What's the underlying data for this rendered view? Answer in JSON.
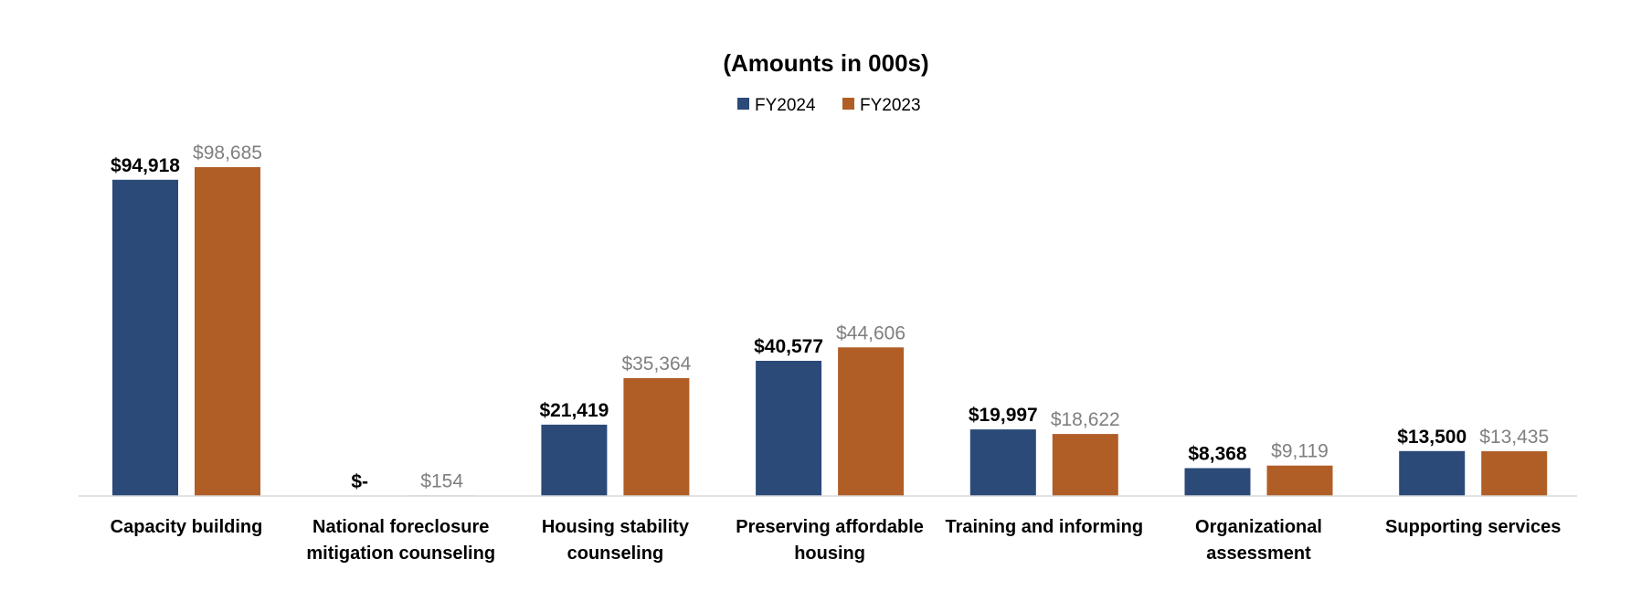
{
  "chart_data": {
    "type": "bar",
    "title": "(Amounts in 000s)",
    "xlabel": "",
    "ylabel": "",
    "ylim": [
      0,
      105000
    ],
    "grid": false,
    "legend_position": "top-center",
    "categories": [
      [
        "Capacity building"
      ],
      [
        "National foreclosure",
        "mitigation counseling"
      ],
      [
        "Housing stability",
        "counseling"
      ],
      [
        "Preserving affordable",
        "housing"
      ],
      [
        "Training and informing"
      ],
      [
        "Organizational",
        "assessment"
      ],
      [
        "Supporting services"
      ]
    ],
    "series": [
      {
        "name": "FY2024",
        "color": "#2b4a78",
        "label_color": "#000000",
        "label_bold": true,
        "values": [
          94918,
          0,
          21419,
          40577,
          19997,
          8368,
          13500
        ],
        "labels": [
          "$94,918",
          "$-",
          "$21,419",
          "$40,577",
          "$19,997",
          "$8,368",
          "$13,500"
        ]
      },
      {
        "name": "FY2023",
        "color": "#b05e26",
        "label_color": "#7f7f7f",
        "label_bold": false,
        "values": [
          98685,
          154,
          35364,
          44606,
          18622,
          9119,
          13435
        ],
        "labels": [
          "$98,685",
          "$154",
          "$35,364",
          "$44,606",
          "$18,622",
          "$9,119",
          "$13,435"
        ]
      }
    ]
  }
}
